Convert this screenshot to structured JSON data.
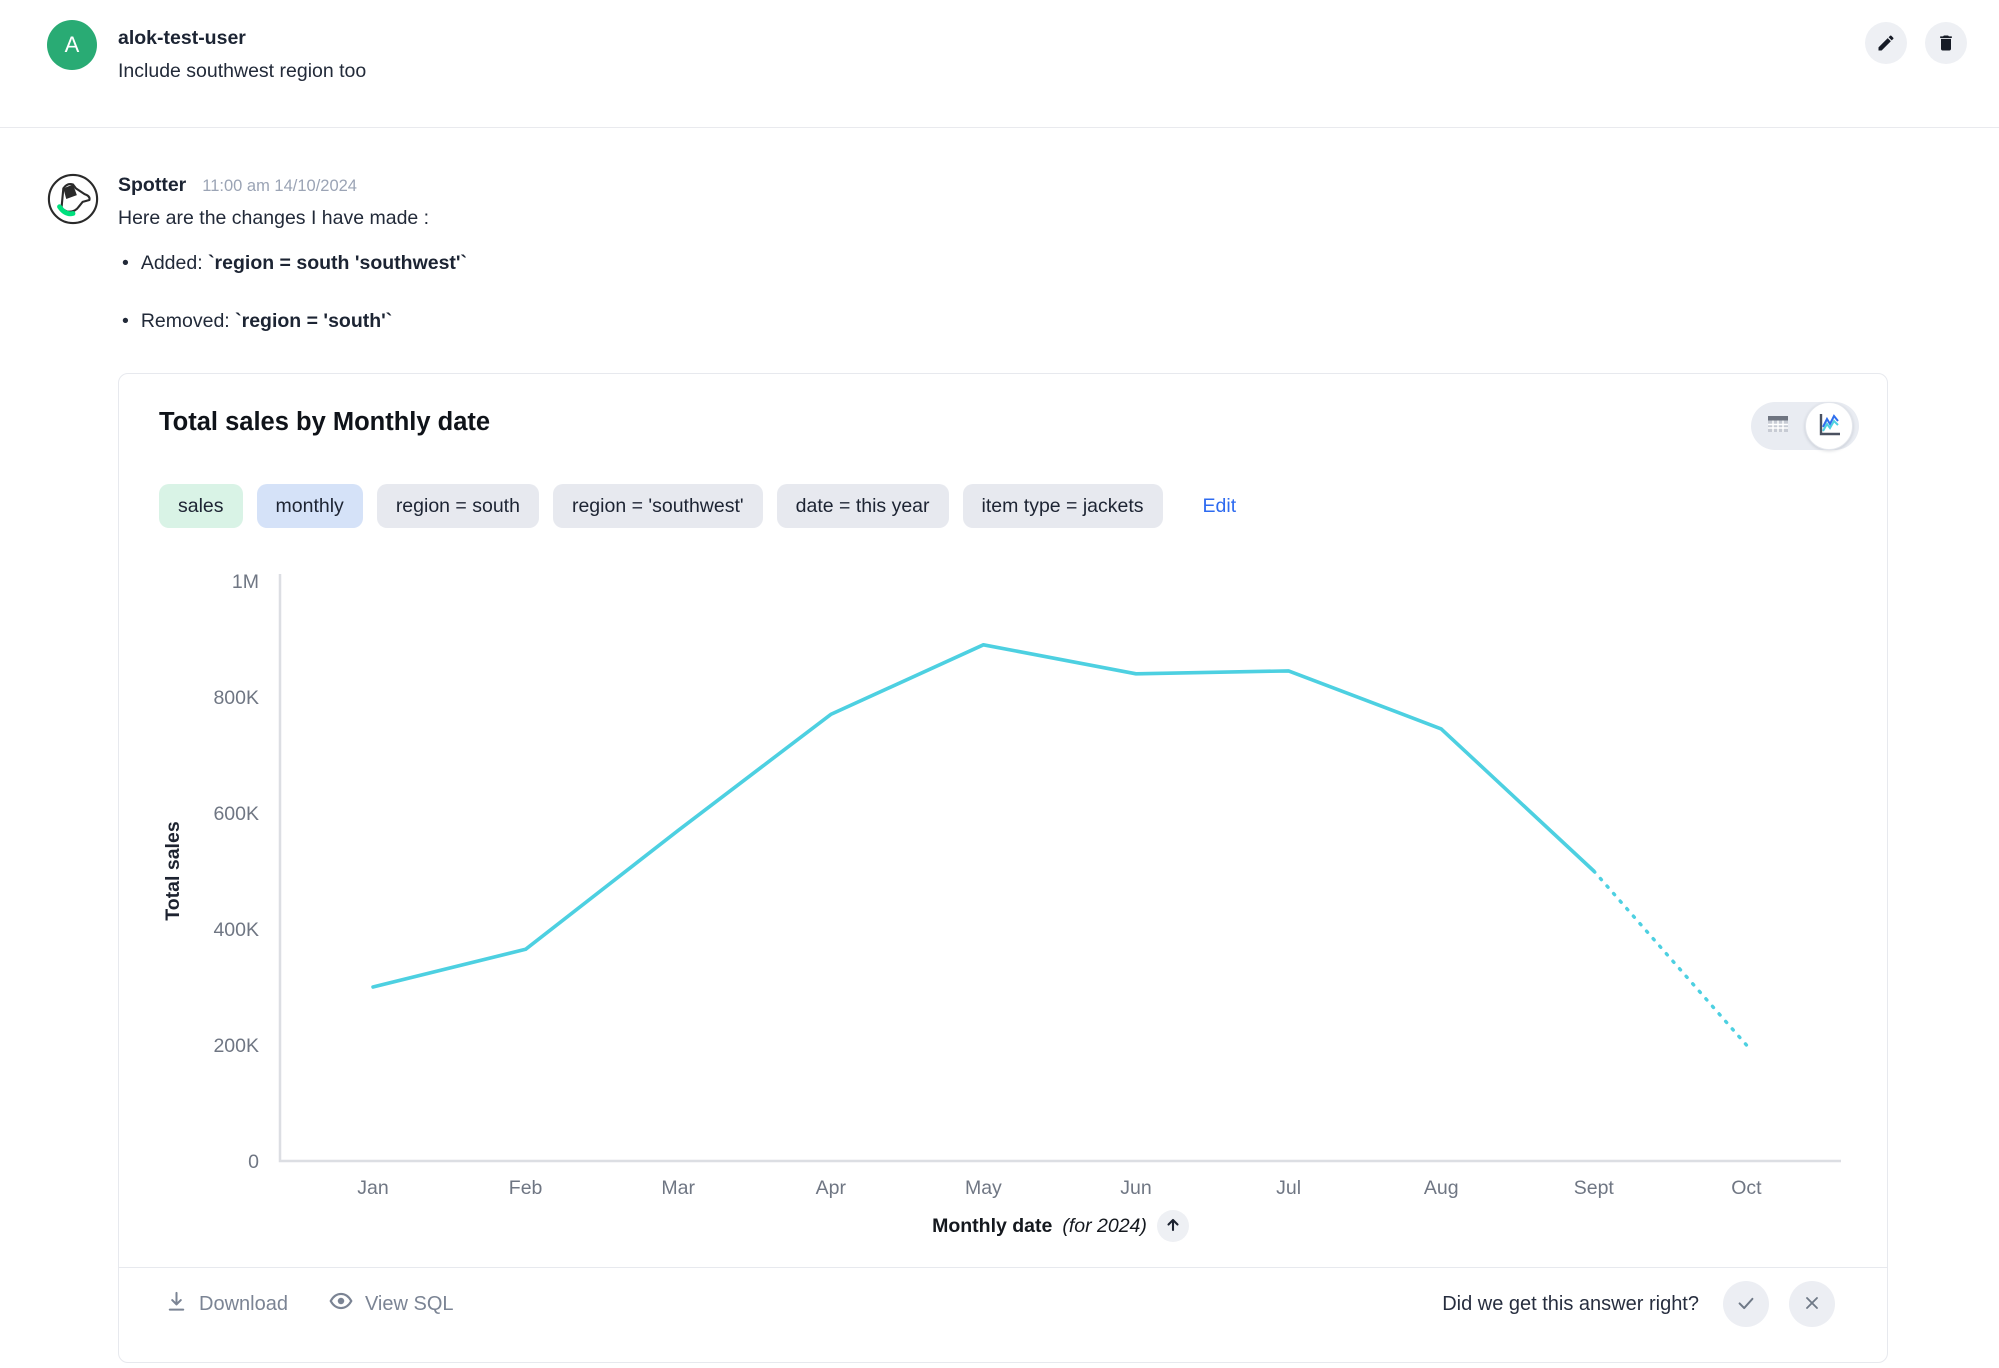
{
  "user_message": {
    "avatar_initial": "A",
    "username": "alok-test-user",
    "text": "Include southwest region too",
    "actions": {
      "edit": "edit",
      "delete": "delete"
    }
  },
  "assistant": {
    "name": "Spotter",
    "timestamp": "11:00 am 14/10/2024",
    "intro": "Here are the changes I have made :",
    "bullets": [
      {
        "prefix": "Added: ",
        "code": "`region = south 'southwest'`"
      },
      {
        "prefix": "Removed: ",
        "code": "`region = 'south'`"
      }
    ]
  },
  "card": {
    "title": "Total sales by Monthly date",
    "chips": [
      {
        "label": "sales",
        "type": "green"
      },
      {
        "label": "monthly",
        "type": "blue"
      },
      {
        "label": "region = south",
        "type": "gray"
      },
      {
        "label": "region = 'southwest'",
        "type": "gray"
      },
      {
        "label": "date = this year",
        "type": "gray"
      },
      {
        "label": "item type = jackets",
        "type": "gray"
      }
    ],
    "edit_label": "Edit",
    "view_toggle": {
      "selected": "chart",
      "options": [
        "table",
        "chart"
      ]
    },
    "footer": {
      "download_label": "Download",
      "view_sql_label": "View SQL",
      "feedback_question": "Did we get this answer right?"
    }
  },
  "chart_data": {
    "type": "line",
    "title": "Total sales by Monthly date",
    "x": [
      "Jan",
      "Feb",
      "Mar",
      "Apr",
      "May",
      "Jun",
      "Jul",
      "Aug",
      "Sept",
      "Oct"
    ],
    "series": [
      {
        "name": "Total sales",
        "values": [
          300000,
          365000,
          570000,
          770000,
          890000,
          840000,
          845000,
          745000,
          500000,
          200000
        ]
      }
    ],
    "solid_until_index": 8,
    "dashed_from_index": 8,
    "line_color": "#4dd0e1",
    "axis_color": "#dcdee3",
    "tick_color": "#6f7683",
    "xlabel": "Monthly date",
    "xlabel_suffix": "(for 2024)",
    "ylabel": "Total sales",
    "ylim": [
      0,
      1000000
    ],
    "yticks": [
      {
        "value": 0,
        "label": "0"
      },
      {
        "value": 200000,
        "label": "200K"
      },
      {
        "value": 400000,
        "label": "400K"
      },
      {
        "value": 600000,
        "label": "600K"
      },
      {
        "value": 800000,
        "label": "800K"
      },
      {
        "value": 1000000,
        "label": "1M"
      }
    ],
    "grid": false,
    "legend": "none"
  }
}
